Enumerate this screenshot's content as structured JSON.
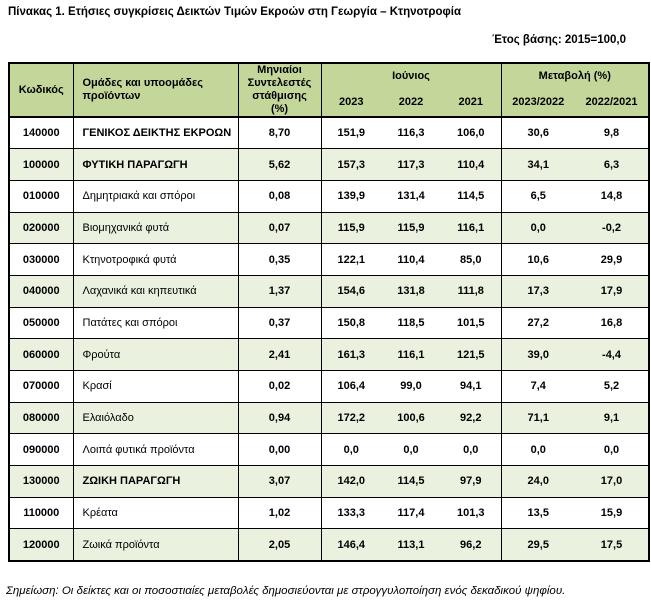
{
  "title": "Πίνακας 1. Ετήσιες συγκρίσεις Δεικτών Τιμών Εκροών στη Γεωργία – Κτηνοτροφία",
  "base_year": "Έτος βάσης: 2015=100,0",
  "note": "Σημείωση: Οι δείκτες και οι ποσοστιαίες μεταβολές δημοσιεύονται με στρογγυλοποίηση ενός δεκαδικού ψηφίου.",
  "colors": {
    "header_bg": "#c4d79b",
    "row_alt_bg": "#eaf1de",
    "border": "#000000"
  },
  "table": {
    "headers": {
      "code": "Κωδικός",
      "groups": "Ομάδες και υποομάδες προϊόντων",
      "weights": "Μηνιαίοι Συντελεστές στάθμισης (%)",
      "june": "Ιούνιος",
      "june_years": [
        "2023",
        "2022",
        "2021"
      ],
      "change": "Μεταβολή (%)",
      "change_periods": [
        "2023/2022",
        "2022/2021"
      ]
    },
    "rows": [
      {
        "code": "140000",
        "name": "ΓΕΝΙΚΟΣ ΔΕΙΚΤΗΣ ΕΚΡΟΩΝ",
        "weight": "8,70",
        "y2023": "151,9",
        "y2022": "116,3",
        "y2021": "106,0",
        "chg_2023_2022": "30,6",
        "chg_2022_2021": "9,8",
        "emphasis": true
      },
      {
        "code": "100000",
        "name": "ΦΥΤΙΚΗ ΠΑΡΑΓΩΓΗ",
        "weight": "5,62",
        "y2023": "157,3",
        "y2022": "117,3",
        "y2021": "110,4",
        "chg_2023_2022": "34,1",
        "chg_2022_2021": "6,3",
        "emphasis": true
      },
      {
        "code": "010000",
        "name": "Δημητριακά και σπόροι",
        "weight": "0,08",
        "y2023": "139,9",
        "y2022": "131,4",
        "y2021": "114,5",
        "chg_2023_2022": "6,5",
        "chg_2022_2021": "14,8",
        "emphasis": false
      },
      {
        "code": "020000",
        "name": "Βιομηχανικά φυτά",
        "weight": "0,07",
        "y2023": "115,9",
        "y2022": "115,9",
        "y2021": "116,1",
        "chg_2023_2022": "0,0",
        "chg_2022_2021": "-0,2",
        "emphasis": false
      },
      {
        "code": "030000",
        "name": "Κτηνοτροφικά φυτά",
        "weight": "0,35",
        "y2023": "122,1",
        "y2022": "110,4",
        "y2021": "85,0",
        "chg_2023_2022": "10,6",
        "chg_2022_2021": "29,9",
        "emphasis": false
      },
      {
        "code": "040000",
        "name": "Λαχανικά και κηπευτικά",
        "weight": "1,37",
        "y2023": "154,6",
        "y2022": "131,8",
        "y2021": "111,8",
        "chg_2023_2022": "17,3",
        "chg_2022_2021": "17,9",
        "emphasis": false
      },
      {
        "code": "050000",
        "name": "Πατάτες και σπόροι",
        "weight": "0,37",
        "y2023": "150,8",
        "y2022": "118,5",
        "y2021": "101,5",
        "chg_2023_2022": "27,2",
        "chg_2022_2021": "16,8",
        "emphasis": false
      },
      {
        "code": "060000",
        "name": "Φρούτα",
        "weight": "2,41",
        "y2023": "161,3",
        "y2022": "116,1",
        "y2021": "121,5",
        "chg_2023_2022": "39,0",
        "chg_2022_2021": "-4,4",
        "emphasis": false
      },
      {
        "code": "070000",
        "name": "Κρασί",
        "weight": "0,02",
        "y2023": "106,4",
        "y2022": "99,0",
        "y2021": "94,1",
        "chg_2023_2022": "7,4",
        "chg_2022_2021": "5,2",
        "emphasis": false
      },
      {
        "code": "080000",
        "name": "Ελαιόλαδο",
        "weight": "0,94",
        "y2023": "172,2",
        "y2022": "100,6",
        "y2021": "92,2",
        "chg_2023_2022": "71,1",
        "chg_2022_2021": "9,1",
        "emphasis": false
      },
      {
        "code": "090000",
        "name": "Λοιπά φυτικά προϊόντα",
        "weight": "0,00",
        "y2023": "0,0",
        "y2022": "0,0",
        "y2021": "0,0",
        "chg_2023_2022": "0,0",
        "chg_2022_2021": "0,0",
        "emphasis": false
      },
      {
        "code": "130000",
        "name": "ΖΩΙΚΗ ΠΑΡΑΓΩΓΗ",
        "weight": "3,07",
        "y2023": "142,0",
        "y2022": "114,5",
        "y2021": "97,9",
        "chg_2023_2022": "24,0",
        "chg_2022_2021": "17,0",
        "emphasis": true
      },
      {
        "code": "110000",
        "name": "Κρέατα",
        "weight": "1,02",
        "y2023": "133,3",
        "y2022": "117,4",
        "y2021": "101,3",
        "chg_2023_2022": "13,5",
        "chg_2022_2021": "15,9",
        "emphasis": false
      },
      {
        "code": "120000",
        "name": "Ζωικά προϊόντα",
        "weight": "2,05",
        "y2023": "146,4",
        "y2022": "113,1",
        "y2021": "96,2",
        "chg_2023_2022": "29,5",
        "chg_2022_2021": "17,5",
        "emphasis": false
      }
    ]
  }
}
